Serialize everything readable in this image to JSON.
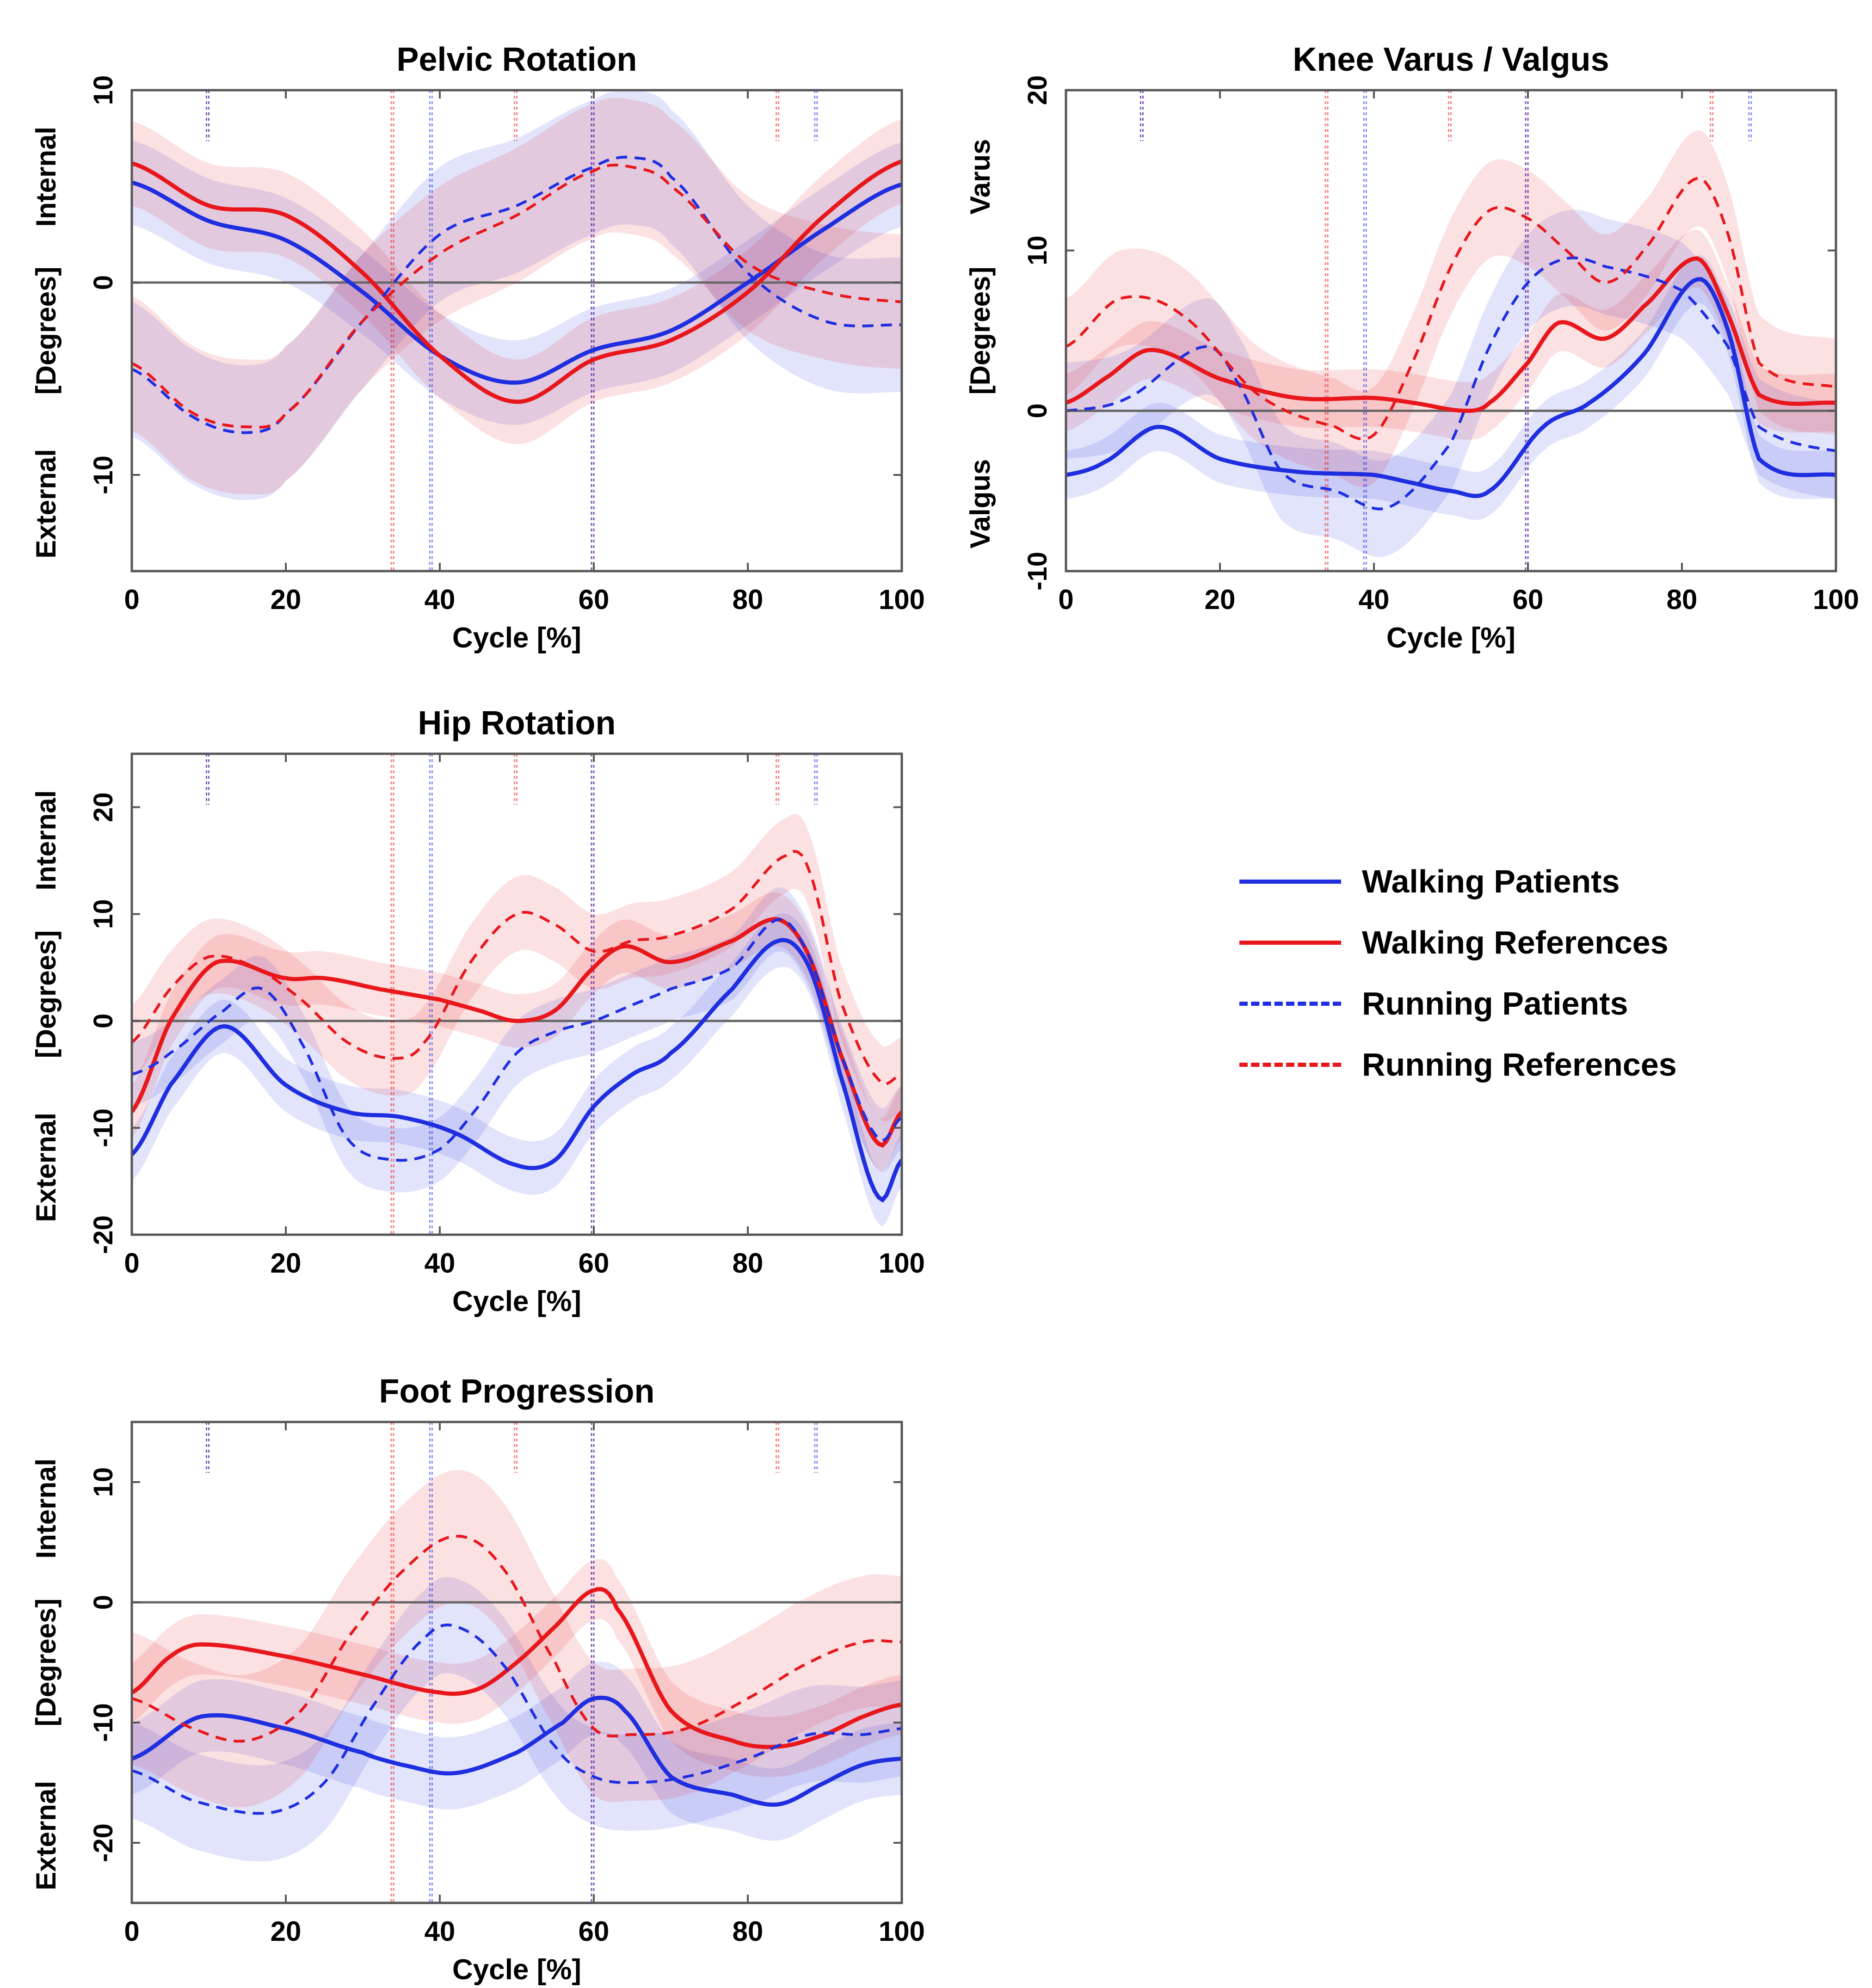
{
  "legend": {
    "walking_patients": "Walking Patients",
    "walking_references": "Walking References",
    "running_patients": "Running  Patients",
    "running_references": "Running  References"
  },
  "colors": {
    "patients": "#1f2fe0",
    "references": "#e8171c"
  },
  "chart_data": [
    {
      "type": "line",
      "title": "Pelvic Rotation",
      "xlabel": "Cycle [%]",
      "ylabel_top": "Internal",
      "ylabel_mid": "[Degrees]",
      "ylabel_bottom": "External",
      "xlim": [
        0,
        100
      ],
      "ylim": [
        -15,
        10
      ],
      "xticks": [
        "0",
        "20",
        "40",
        "60",
        "80",
        "100"
      ],
      "yticks": [
        -10,
        0,
        10
      ],
      "ytick_labels": [
        "-10",
        "0",
        "10"
      ],
      "event_markers": {
        "patients": [
          10,
          39,
          60,
          89
        ],
        "references": [
          10,
          34,
          50,
          60,
          84
        ]
      },
      "series": [
        {
          "name": "Walking Patients",
          "style": "solid",
          "group": "patients",
          "band": 2.2,
          "x": [
            0,
            10,
            20,
            30,
            40,
            50,
            60,
            70,
            80,
            90,
            100
          ],
          "y": [
            5.2,
            3.2,
            2.2,
            -0.5,
            -3.8,
            -5.2,
            -3.5,
            -2.5,
            0,
            2.8,
            5.1
          ]
        },
        {
          "name": "Walking References",
          "style": "solid",
          "group": "references",
          "band": 2.2,
          "x": [
            0,
            10,
            20,
            30,
            40,
            50,
            60,
            70,
            80,
            90,
            100
          ],
          "y": [
            6.2,
            4.0,
            3.5,
            0.5,
            -3.8,
            -6.2,
            -4.0,
            -3.0,
            -0.5,
            3.5,
            6.3
          ]
        },
        {
          "name": "Running  Patients",
          "style": "dashed",
          "group": "patients",
          "band": 3.5,
          "x": [
            0,
            8,
            15,
            20,
            30,
            40,
            50,
            60,
            65,
            70,
            80,
            90,
            100
          ],
          "y": [
            -4.5,
            -7.0,
            -7.8,
            -6.8,
            -2.0,
            2.5,
            4.0,
            6.0,
            6.5,
            5.5,
            0.5,
            -2.0,
            -2.2
          ]
        },
        {
          "name": "Running  References",
          "style": "dashed",
          "group": "references",
          "band": 3.5,
          "x": [
            0,
            8,
            15,
            20,
            30,
            40,
            50,
            60,
            65,
            70,
            80,
            90,
            100
          ],
          "y": [
            -4.2,
            -6.8,
            -7.5,
            -6.8,
            -2.0,
            1.5,
            3.5,
            5.8,
            6.0,
            5.0,
            1.0,
            -0.5,
            -1.0
          ]
        }
      ]
    },
    {
      "type": "line",
      "title": "Knee Varus / Valgus",
      "xlabel": "Cycle [%]",
      "ylabel_top": "Varus",
      "ylabel_mid": "[Degrees]",
      "ylabel_bottom": "Valgus",
      "xlim": [
        0,
        100
      ],
      "ylim": [
        -10,
        20
      ],
      "xticks": [
        "0",
        "20",
        "40",
        "60",
        "80",
        "100"
      ],
      "yticks": [
        -10,
        0,
        10,
        20
      ],
      "ytick_labels": [
        "-10",
        "0",
        "10",
        "20"
      ],
      "event_markers": {
        "patients": [
          10,
          39,
          60,
          89
        ],
        "references": [
          10,
          34,
          50,
          60,
          84
        ]
      },
      "series": [
        {
          "name": "Walking Patients",
          "style": "solid",
          "group": "patients",
          "band": 1.5,
          "x": [
            0,
            5,
            12,
            20,
            30,
            40,
            45,
            50,
            55,
            62,
            68,
            75,
            82,
            86,
            90,
            100
          ],
          "y": [
            -4.0,
            -3.2,
            -1.0,
            -3.0,
            -3.8,
            -4.0,
            -4.5,
            -5.0,
            -5.0,
            -1.0,
            0.5,
            3.5,
            8.2,
            5.0,
            -3.0,
            -4.0
          ]
        },
        {
          "name": "Walking References",
          "style": "solid",
          "group": "references",
          "band": 1.8,
          "x": [
            0,
            5,
            11,
            20,
            30,
            40,
            45,
            52,
            55,
            60,
            64,
            70,
            75,
            82,
            86,
            90,
            100
          ],
          "y": [
            0.5,
            2.0,
            3.8,
            2.0,
            0.8,
            0.8,
            0.5,
            0,
            0.5,
            3.0,
            5.5,
            4.5,
            6.5,
            9.5,
            6.0,
            1.0,
            0.5
          ]
        },
        {
          "name": "Running  Patients",
          "style": "dashed",
          "group": "patients",
          "band": 3.0,
          "x": [
            0,
            8,
            18,
            22,
            28,
            35,
            42,
            50,
            55,
            60,
            65,
            70,
            80,
            86,
            90,
            100
          ],
          "y": [
            0,
            0.8,
            4.0,
            2.0,
            -3.8,
            -5.0,
            -6.0,
            -2.0,
            4.0,
            8.0,
            9.5,
            9.0,
            7.5,
            4.0,
            -1.0,
            -2.5
          ]
        },
        {
          "name": "Running  References",
          "style": "dashed",
          "group": "references",
          "band": 3.0,
          "x": [
            0,
            7,
            15,
            25,
            35,
            40,
            45,
            50,
            55,
            60,
            65,
            70,
            75,
            82,
            86,
            90,
            100
          ],
          "y": [
            4.0,
            7.0,
            6.0,
            1.0,
            -1.0,
            -1.5,
            3.0,
            9.0,
            12.5,
            12.0,
            10.0,
            8.0,
            10.0,
            14.5,
            11.0,
            3.0,
            1.5
          ]
        }
      ]
    },
    {
      "type": "line",
      "title": "Hip Rotation",
      "xlabel": "Cycle [%]",
      "ylabel_top": "Internal",
      "ylabel_mid": "[Degrees]",
      "ylabel_bottom": "External",
      "xlim": [
        0,
        100
      ],
      "ylim": [
        -20,
        25
      ],
      "xticks": [
        "0",
        "20",
        "40",
        "60",
        "80",
        "100"
      ],
      "yticks": [
        -20,
        -10,
        0,
        10,
        20
      ],
      "ytick_labels": [
        "-20",
        "-10",
        "0",
        "10",
        "20"
      ],
      "event_markers": {
        "patients": [
          10,
          39,
          60,
          89
        ],
        "references": [
          10,
          34,
          50,
          60,
          84
        ]
      },
      "series": [
        {
          "name": "Walking Patients",
          "style": "solid",
          "group": "patients",
          "band": 2.5,
          "x": [
            0,
            5,
            12,
            20,
            28,
            35,
            42,
            50,
            55,
            60,
            65,
            70,
            78,
            84,
            88,
            92,
            97,
            100
          ],
          "y": [
            -12.5,
            -6.0,
            -0.5,
            -6.0,
            -8.5,
            -9.0,
            -10.5,
            -13.5,
            -13.0,
            -8.0,
            -5.0,
            -3.0,
            3.0,
            7.5,
            5.0,
            -5.0,
            -16.5,
            -13.0
          ]
        },
        {
          "name": "Walking References",
          "style": "solid",
          "group": "references",
          "band": 2.5,
          "x": [
            0,
            5,
            11,
            20,
            25,
            32,
            40,
            45,
            50,
            55,
            60,
            64,
            70,
            78,
            84,
            88,
            92,
            97,
            100
          ],
          "y": [
            -8.5,
            0,
            5.5,
            4.0,
            4.0,
            3.0,
            2.0,
            1.0,
            0,
            1.0,
            5.0,
            7.0,
            5.5,
            7.5,
            9.5,
            6.0,
            -3.0,
            -11.5,
            -8.5
          ]
        },
        {
          "name": "Running  Patients",
          "style": "dashed",
          "group": "patients",
          "band": 3.0,
          "x": [
            0,
            5,
            12,
            17,
            22,
            28,
            34,
            40,
            45,
            50,
            55,
            60,
            65,
            70,
            78,
            84,
            88,
            92,
            97,
            100
          ],
          "y": [
            -5.0,
            -3.0,
            1.0,
            3.0,
            -2.0,
            -11.0,
            -13.0,
            -12.0,
            -8.0,
            -3.0,
            -1.0,
            0,
            1.5,
            3.0,
            5.0,
            9.5,
            6.0,
            -3.0,
            -11.0,
            -9.0
          ]
        },
        {
          "name": "Running  References",
          "style": "dashed",
          "group": "references",
          "band": 3.5,
          "x": [
            0,
            5,
            10,
            16,
            22,
            28,
            34,
            38,
            44,
            50,
            55,
            60,
            65,
            70,
            78,
            85,
            88,
            92,
            97,
            100
          ],
          "y": [
            -2.0,
            3.0,
            6.0,
            5.0,
            2.0,
            -2.0,
            -3.5,
            -2.0,
            5.5,
            10.0,
            9.0,
            6.5,
            7.5,
            8.0,
            10.5,
            15.5,
            14.0,
            2.0,
            -5.5,
            -5.0
          ]
        }
      ]
    },
    {
      "type": "line",
      "title": "Foot Progression",
      "xlabel": "Cycle [%]",
      "ylabel_top": "Internal",
      "ylabel_mid": "[Degrees]",
      "ylabel_bottom": "External",
      "xlim": [
        0,
        100
      ],
      "ylim": [
        -25,
        15
      ],
      "xticks": [
        "0",
        "20",
        "40",
        "60",
        "80",
        "100"
      ],
      "yticks": [
        -20,
        -10,
        0,
        10
      ],
      "ytick_labels": [
        "-20",
        "-10",
        "0",
        "10"
      ],
      "event_markers": {
        "patients": [
          10,
          39,
          60,
          89
        ],
        "references": [
          10,
          34,
          50,
          60,
          84
        ]
      },
      "series": [
        {
          "name": "Walking Patients",
          "style": "solid",
          "group": "patients",
          "band": 3.0,
          "x": [
            0,
            9,
            20,
            30,
            35,
            42,
            50,
            56,
            60,
            64,
            70,
            78,
            84,
            90,
            95,
            100
          ],
          "y": [
            -13.0,
            -9.5,
            -10.5,
            -12.5,
            -13.5,
            -14.2,
            -12.5,
            -10.0,
            -8.0,
            -9.0,
            -14.5,
            -16.0,
            -16.8,
            -15.0,
            -13.5,
            -13.0
          ]
        },
        {
          "name": "Walking References",
          "style": "solid",
          "group": "references",
          "band": 2.5,
          "x": [
            0,
            5,
            9,
            20,
            30,
            40,
            45,
            50,
            55,
            60,
            63,
            70,
            78,
            84,
            90,
            95,
            100
          ],
          "y": [
            -7.5,
            -4.5,
            -3.5,
            -4.5,
            -6.0,
            -7.5,
            -7.2,
            -5.0,
            -2.0,
            1.0,
            -0.5,
            -9.0,
            -11.5,
            -12.0,
            -11.0,
            -9.5,
            -8.5
          ]
        },
        {
          "name": "Running  Patients",
          "style": "dashed",
          "group": "patients",
          "band": 4.0,
          "x": [
            0,
            8,
            18,
            25,
            32,
            38,
            42,
            48,
            55,
            60,
            65,
            72,
            80,
            88,
            95,
            100
          ],
          "y": [
            -14.0,
            -16.5,
            -17.5,
            -15.0,
            -8.0,
            -3.0,
            -2.0,
            -5.0,
            -12.0,
            -14.5,
            -15.0,
            -14.5,
            -13.0,
            -11.0,
            -11.0,
            -10.5
          ]
        },
        {
          "name": "Running  References",
          "style": "dashed",
          "group": "references",
          "band": 5.5,
          "x": [
            0,
            8,
            15,
            22,
            28,
            35,
            42,
            48,
            55,
            60,
            65,
            72,
            80,
            88,
            95,
            100
          ],
          "y": [
            -8.0,
            -10.5,
            -11.5,
            -9.0,
            -3.0,
            2.5,
            5.5,
            3.0,
            -5.0,
            -10.5,
            -11.0,
            -10.5,
            -8.0,
            -5.0,
            -3.3,
            -3.3
          ]
        }
      ]
    }
  ]
}
